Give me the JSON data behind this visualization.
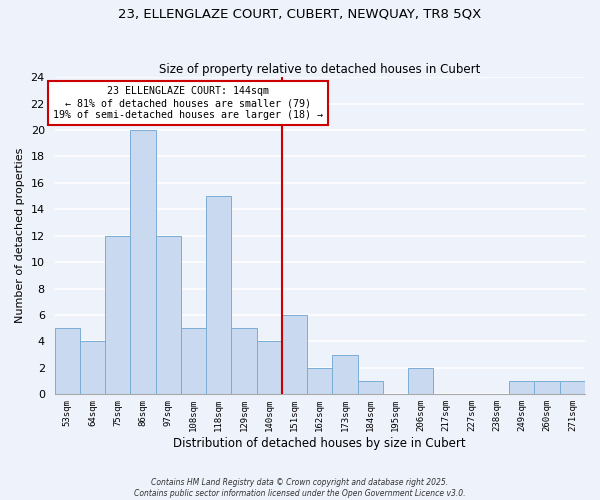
{
  "title": "23, ELLENGLAZE COURT, CUBERT, NEWQUAY, TR8 5QX",
  "subtitle": "Size of property relative to detached houses in Cubert",
  "xlabel": "Distribution of detached houses by size in Cubert",
  "ylabel": "Number of detached properties",
  "bin_labels": [
    "53sqm",
    "64sqm",
    "75sqm",
    "86sqm",
    "97sqm",
    "108sqm",
    "118sqm",
    "129sqm",
    "140sqm",
    "151sqm",
    "162sqm",
    "173sqm",
    "184sqm",
    "195sqm",
    "206sqm",
    "217sqm",
    "227sqm",
    "238sqm",
    "249sqm",
    "260sqm",
    "271sqm"
  ],
  "bar_heights": [
    5,
    4,
    12,
    20,
    12,
    5,
    15,
    5,
    4,
    6,
    2,
    3,
    1,
    0,
    2,
    0,
    0,
    0,
    1,
    1,
    1
  ],
  "bar_color": "#c9d9f0",
  "bar_edge_color": "#7aadd4",
  "vline_x_idx": 8,
  "vline_color": "#cc0000",
  "annotation_title": "23 ELLENGLAZE COURT: 144sqm",
  "annotation_line1": "← 81% of detached houses are smaller (79)",
  "annotation_line2": "19% of semi-detached houses are larger (18) →",
  "annotation_box_color": "#ffffff",
  "annotation_box_edge": "#cc0000",
  "ylim": [
    0,
    24
  ],
  "yticks": [
    0,
    2,
    4,
    6,
    8,
    10,
    12,
    14,
    16,
    18,
    20,
    22,
    24
  ],
  "background_color": "#eef2fb",
  "grid_color": "#ffffff",
  "footer1": "Contains HM Land Registry data © Crown copyright and database right 2025.",
  "footer2": "Contains public sector information licensed under the Open Government Licence v3.0."
}
